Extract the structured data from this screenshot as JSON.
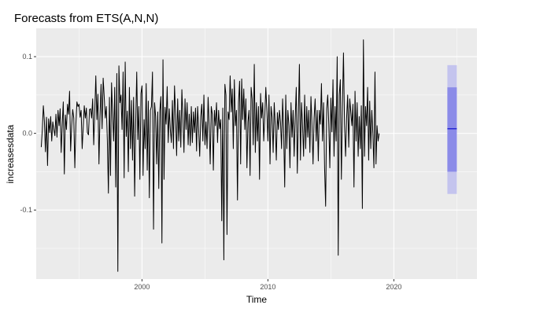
{
  "chart_data": {
    "type": "line",
    "title": "Forecasts from ETS(A,N,N)",
    "xlabel": "Time",
    "ylabel": "increasesdata",
    "xlim": [
      1991.6,
      2026.6
    ],
    "ylim": [
      -0.19,
      0.137
    ],
    "x_ticks": [
      2000,
      2010,
      2020
    ],
    "x_tick_labels": [
      "2000",
      "2010",
      "2020"
    ],
    "y_ticks": [
      0.1,
      0.0,
      -0.1
    ],
    "y_tick_labels": [
      "0.1",
      "0.0",
      "-0.1"
    ],
    "grid": true,
    "panel_color": "#ebebeb",
    "series": [
      {
        "role": "observed",
        "color": "#000000",
        "x_start": 1992.0,
        "x_step": 0.0833333,
        "values": [
          -0.018,
          0.004,
          0.036,
          0.016,
          -0.024,
          0.021,
          -0.042,
          0.019,
          0.001,
          0.022,
          -0.01,
          0.015,
          0.005,
          -0.003,
          0.025,
          -0.005,
          0.03,
          0.01,
          0.032,
          -0.025,
          0.012,
          0.041,
          -0.053,
          0.024,
          0.005,
          0.038,
          0.025,
          0.055,
          -0.023,
          0.01,
          0.031,
          0.02,
          -0.045,
          0.012,
          0.041,
          0.035,
          0.038,
          0.021,
          0.03,
          -0.02,
          0.008,
          0.036,
          0.02,
          0.033,
          0.001,
          -0.002,
          0.031,
          0.032,
          0.02,
          0.045,
          -0.015,
          0.028,
          0.075,
          0.018,
          0.051,
          -0.04,
          0.022,
          0.064,
          0.006,
          0.072,
          0.048,
          0.02,
          0.035,
          -0.009,
          -0.078,
          0.047,
          -0.055,
          0.066,
          0.024,
          -0.01,
          0.06,
          -0.07,
          0.078,
          -0.18,
          0.088,
          0.04,
          0.05,
          0.005,
          0.08,
          -0.058,
          0.093,
          -0.004,
          0.029,
          -0.05,
          0.06,
          -0.02,
          0.043,
          -0.035,
          0.047,
          -0.082,
          0.012,
          0.08,
          -0.008,
          0.035,
          -0.06,
          0.052,
          0.062,
          -0.055,
          0.018,
          -0.02,
          0.065,
          -0.048,
          0.042,
          -0.084,
          0.03,
          0.035,
          0.08,
          -0.125,
          0.04,
          0.022,
          -0.04,
          0.028,
          -0.072,
          0.03,
          0.048,
          -0.143,
          0.096,
          -0.06,
          0.034,
          0.012,
          0.061,
          -0.012,
          0.032,
          0.005,
          -0.012,
          0.043,
          -0.02,
          0.062,
          0.024,
          -0.029,
          0.045,
          -0.01,
          0.03,
          -0.018,
          0.057,
          0.02,
          -0.025,
          0.045,
          0.005,
          0.04,
          -0.015,
          0.025,
          -0.016,
          0.035,
          -0.012,
          0.028,
          0.001,
          0.033,
          -0.023,
          0.035,
          0.005,
          -0.03,
          0.022,
          0.038,
          -0.01,
          0.05,
          -0.015,
          0.015,
          -0.02,
          0.047,
          0.01,
          -0.04,
          0.035,
          0.025,
          -0.048,
          0.03,
          0.01,
          0.04,
          -0.012,
          0.03,
          0.006,
          0.018,
          -0.114,
          0.033,
          -0.165,
          0.064,
          0.05,
          -0.132,
          0.028,
          0.018,
          0.075,
          0.028,
          0.058,
          -0.02,
          0.07,
          0.01,
          0.03,
          -0.087,
          0.04,
          0.068,
          -0.04,
          0.071,
          0.018,
          0.058,
          0.005,
          0.045,
          -0.045,
          0.015,
          0.03,
          -0.055,
          0.06,
          0.045,
          -0.015,
          0.09,
          -0.025,
          0.04,
          -0.01,
          0.035,
          -0.06,
          0.052,
          0.02,
          0.04,
          -0.01,
          0.022,
          0.06,
          0.03,
          -0.01,
          0.05,
          -0.04,
          0.035,
          0.021,
          -0.025,
          0.04,
          0.01,
          -0.035,
          0.027,
          0.005,
          0.03,
          0.015,
          -0.02,
          0.045,
          0.003,
          -0.07,
          0.05,
          -0.02,
          0.03,
          0.01,
          -0.045,
          0.04,
          -0.005,
          0.03,
          -0.03,
          0.02,
          0.06,
          -0.052,
          0.022,
          0.09,
          -0.035,
          0.04,
          0.01,
          -0.03,
          0.05,
          -0.02,
          0.035,
          -0.005,
          0.03,
          -0.025,
          0.048,
          0.01,
          -0.04,
          0.02,
          0.045,
          -0.01,
          0.03,
          -0.036,
          0.03,
          0.012,
          0.065,
          -0.01,
          0.04,
          -0.045,
          -0.095,
          0.032,
          0.05,
          0.012,
          -0.045,
          0.046,
          0.002,
          0.07,
          -0.03,
          0.035,
          -0.01,
          0.1,
          -0.159,
          0.05,
          0.07,
          -0.06,
          0.035,
          0.105,
          0.012,
          -0.03,
          0.02,
          0.05,
          -0.018,
          0.045,
          0.028,
          0.01,
          0.038,
          -0.07,
          0.055,
          -0.01,
          0.04,
          -0.03,
          0.022,
          -0.02,
          0.036,
          -0.098,
          0.122,
          -0.03,
          0.035,
          0.01,
          0.06,
          -0.035,
          0.042,
          -0.02,
          0.03,
          0.0,
          -0.045,
          0.08,
          -0.04,
          0.01,
          -0.01,
          0.0
        ]
      },
      {
        "role": "forecast-mean",
        "color": "#1111cc",
        "x": [
          2024.25,
          2025.0
        ],
        "values": [
          0.006,
          0.006
        ]
      }
    ],
    "intervals": [
      {
        "level": "95%",
        "color": "#c4c4ee",
        "x": [
          2024.25,
          2025.0
        ],
        "lower": -0.079,
        "upper": 0.089
      },
      {
        "level": "80%",
        "color": "#8b8be8",
        "x": [
          2024.25,
          2025.0
        ],
        "lower": -0.05,
        "upper": 0.06
      }
    ]
  }
}
